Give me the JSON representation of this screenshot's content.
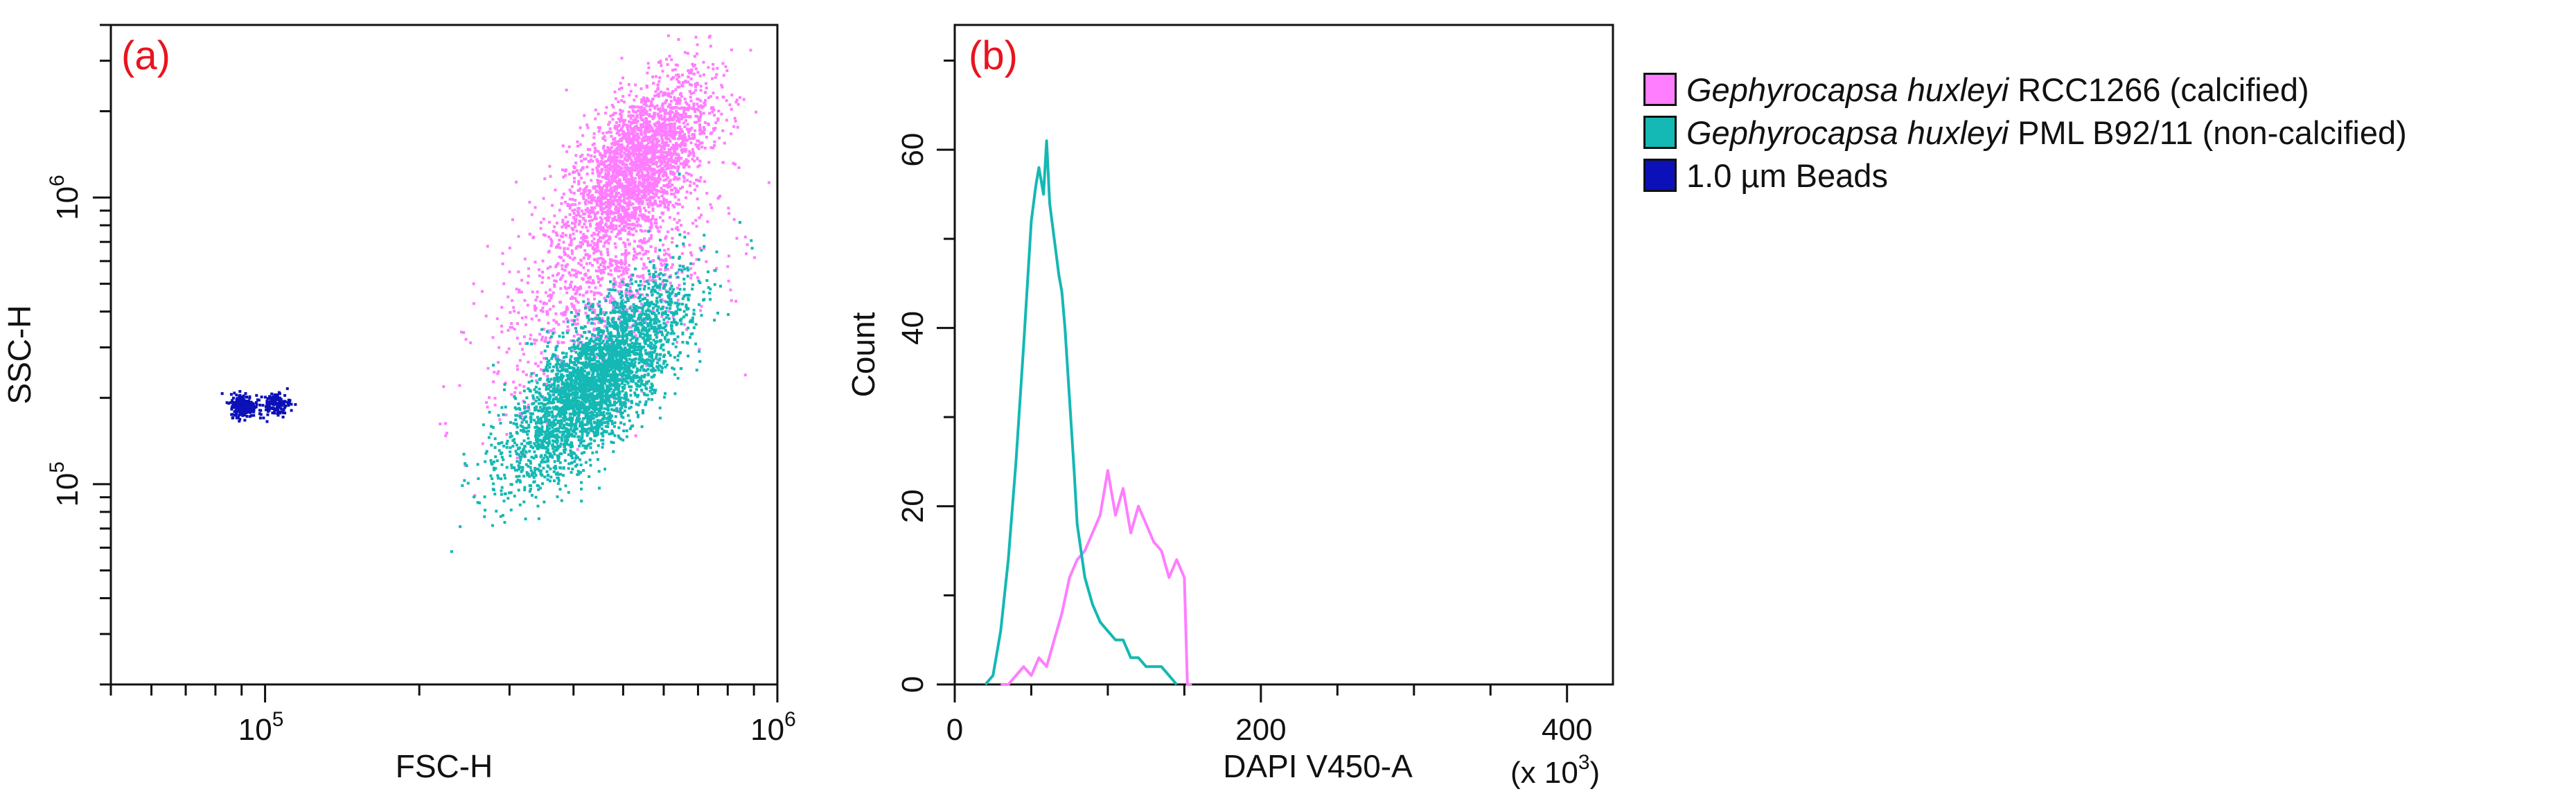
{
  "chart_data": [
    {
      "type": "scatter",
      "panel_label": "(a)",
      "xlabel": "FSC-H",
      "ylabel": "SSC-H",
      "x_scale": "log",
      "y_scale": "log",
      "xlim": [
        50000,
        1000000
      ],
      "ylim": [
        20000,
        4000000
      ],
      "x_tick_labels": [
        {
          "value": 100000,
          "base": "10",
          "exp": "5"
        },
        {
          "value": 1000000,
          "base": "10",
          "exp": "6"
        }
      ],
      "y_tick_labels": [
        {
          "value": 100000,
          "base": "10",
          "exp": "5"
        },
        {
          "value": 1000000,
          "base": "10",
          "exp": "6"
        }
      ],
      "series": [
        {
          "name": "Gephyrocapsa huxleyi RCC1266 (calcified)",
          "color": "#ff7dff",
          "clusters": [
            {
              "x_center": 530000,
              "y_center": 1300000,
              "x_spread": 0.07,
              "y_spread": 0.16,
              "corr": 0.6,
              "n": 2600
            },
            {
              "x_center": 450000,
              "y_center": 450000,
              "x_spread": 0.11,
              "y_spread": 0.2,
              "corr": 0.5,
              "n": 900
            }
          ]
        },
        {
          "name": "Gephyrocapsa huxleyi PML B92/11 (non-calcified)",
          "color": "#14b8b4",
          "clusters": [
            {
              "x_center": 440000,
              "y_center": 230000,
              "x_spread": 0.085,
              "y_spread": 0.17,
              "corr": 0.75,
              "n": 3400
            }
          ]
        },
        {
          "name": "1.0 µm Beads",
          "color": "#0c10b8",
          "clusters": [
            {
              "x_center": 90000,
              "y_center": 190000,
              "x_spread": 0.012,
              "y_spread": 0.02,
              "corr": 0.0,
              "n": 260
            },
            {
              "x_center": 104000,
              "y_center": 192000,
              "x_spread": 0.015,
              "y_spread": 0.02,
              "corr": 0.0,
              "n": 130
            }
          ]
        }
      ]
    },
    {
      "type": "line",
      "panel_label": "(b)",
      "xlabel": "DAPI V450-A",
      "x_multiplier": {
        "base": "(x 10",
        "exp": "3",
        "close": ")"
      },
      "ylabel": "Count",
      "xlim": [
        0,
        430
      ],
      "ylim": [
        0,
        74
      ],
      "x_ticks": [
        0,
        200,
        400
      ],
      "y_ticks": [
        0,
        20,
        40,
        60
      ],
      "series": [
        {
          "name": "Gephyrocapsa huxleyi RCC1266 (calcified)",
          "color": "#ff7dff",
          "x": [
            30,
            35,
            40,
            45,
            50,
            55,
            60,
            65,
            70,
            75,
            80,
            85,
            90,
            95,
            100,
            105,
            110,
            115,
            120,
            125,
            130,
            135,
            140,
            145,
            150,
            152,
            155
          ],
          "y": [
            0,
            0,
            1,
            2,
            1,
            3,
            2,
            5,
            8,
            12,
            14,
            15,
            17,
            19,
            24,
            19,
            22,
            17,
            20,
            18,
            16,
            15,
            12,
            14,
            12,
            0,
            0
          ]
        },
        {
          "name": "Gephyrocapsa huxleyi PML B92/11 (non-calcified)",
          "color": "#14b8b4",
          "x": [
            20,
            25,
            30,
            35,
            40,
            45,
            50,
            53,
            55,
            58,
            60,
            62,
            65,
            68,
            70,
            72,
            75,
            78,
            80,
            85,
            90,
            95,
            100,
            105,
            110,
            115,
            120,
            125,
            130,
            135,
            140,
            145
          ],
          "y": [
            0,
            1,
            6,
            14,
            25,
            38,
            52,
            56,
            58,
            55,
            61,
            54,
            50,
            46,
            44,
            40,
            32,
            24,
            18,
            12,
            9,
            7,
            6,
            5,
            5,
            3,
            3,
            2,
            2,
            2,
            1,
            0
          ]
        }
      ]
    }
  ],
  "legend": {
    "items": [
      {
        "italic": "Gephyrocapsa huxleyi",
        "rest": " RCC1266  (calcified)",
        "color": "#ff7dff"
      },
      {
        "italic": "Gephyrocapsa huxleyi",
        "rest": " PML B92/11 (non-calcified)",
        "color": "#14b8b4"
      },
      {
        "italic": "",
        "rest": "1.0 µm Beads",
        "color": "#0c10b8"
      }
    ]
  }
}
